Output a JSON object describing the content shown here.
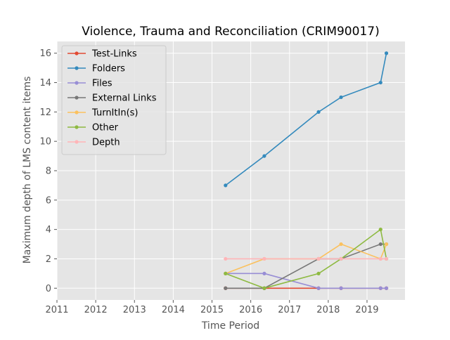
{
  "chart_data": {
    "type": "line",
    "title": "Violence, Trauma and Reconciliation (CRIM90017)",
    "xlabel": "Time Period",
    "ylabel": "Maximum depth of LMS content items",
    "xlim": [
      2011,
      2019.98
    ],
    "ylim": [
      -0.8,
      16.8
    ],
    "x_ticks": [
      2011,
      2012,
      2013,
      2014,
      2015,
      2016,
      2017,
      2018,
      2019
    ],
    "y_ticks": [
      0,
      2,
      4,
      6,
      8,
      10,
      12,
      14,
      16
    ],
    "grid": true,
    "legend_position": "upper-left",
    "series": [
      {
        "name": "Test-Links",
        "color": "#e24a33",
        "x": [
          2015.35,
          2016.35,
          2017.75,
          2018.33,
          2019.35,
          2019.5
        ],
        "y": [
          0,
          0,
          0,
          0,
          0,
          0
        ]
      },
      {
        "name": "Folders",
        "color": "#348abd",
        "x": [
          2015.35,
          2016.35,
          2017.75,
          2018.33,
          2019.35,
          2019.5
        ],
        "y": [
          7,
          9,
          12,
          13,
          14,
          16
        ]
      },
      {
        "name": "Files",
        "color": "#988ed5",
        "x": [
          2015.35,
          2016.35,
          2017.75,
          2018.33,
          2019.35,
          2019.5
        ],
        "y": [
          1,
          1,
          0,
          0,
          0,
          0
        ]
      },
      {
        "name": "External Links",
        "color": "#777777",
        "x": [
          2015.35,
          2016.35,
          2017.75,
          2018.33,
          2019.35,
          2019.5
        ],
        "y": [
          0,
          0,
          2,
          2,
          3,
          3
        ]
      },
      {
        "name": "TurnItIn(s)",
        "color": "#fbc15e",
        "x": [
          2015.35,
          2016.35,
          2017.75,
          2018.33,
          2019.35,
          2019.5
        ],
        "y": [
          1,
          2,
          2,
          3,
          2,
          3
        ]
      },
      {
        "name": "Other",
        "color": "#8eba42",
        "x": [
          2015.35,
          2016.35,
          2017.75,
          2018.33,
          2019.35,
          2019.5
        ],
        "y": [
          1,
          0,
          1,
          2,
          4,
          2
        ]
      },
      {
        "name": "Depth",
        "color": "#ffb5b8",
        "x": [
          2015.35,
          2016.35,
          2017.75,
          2018.33,
          2019.35,
          2019.5
        ],
        "y": [
          2,
          2,
          2,
          2,
          2,
          2
        ]
      }
    ]
  }
}
